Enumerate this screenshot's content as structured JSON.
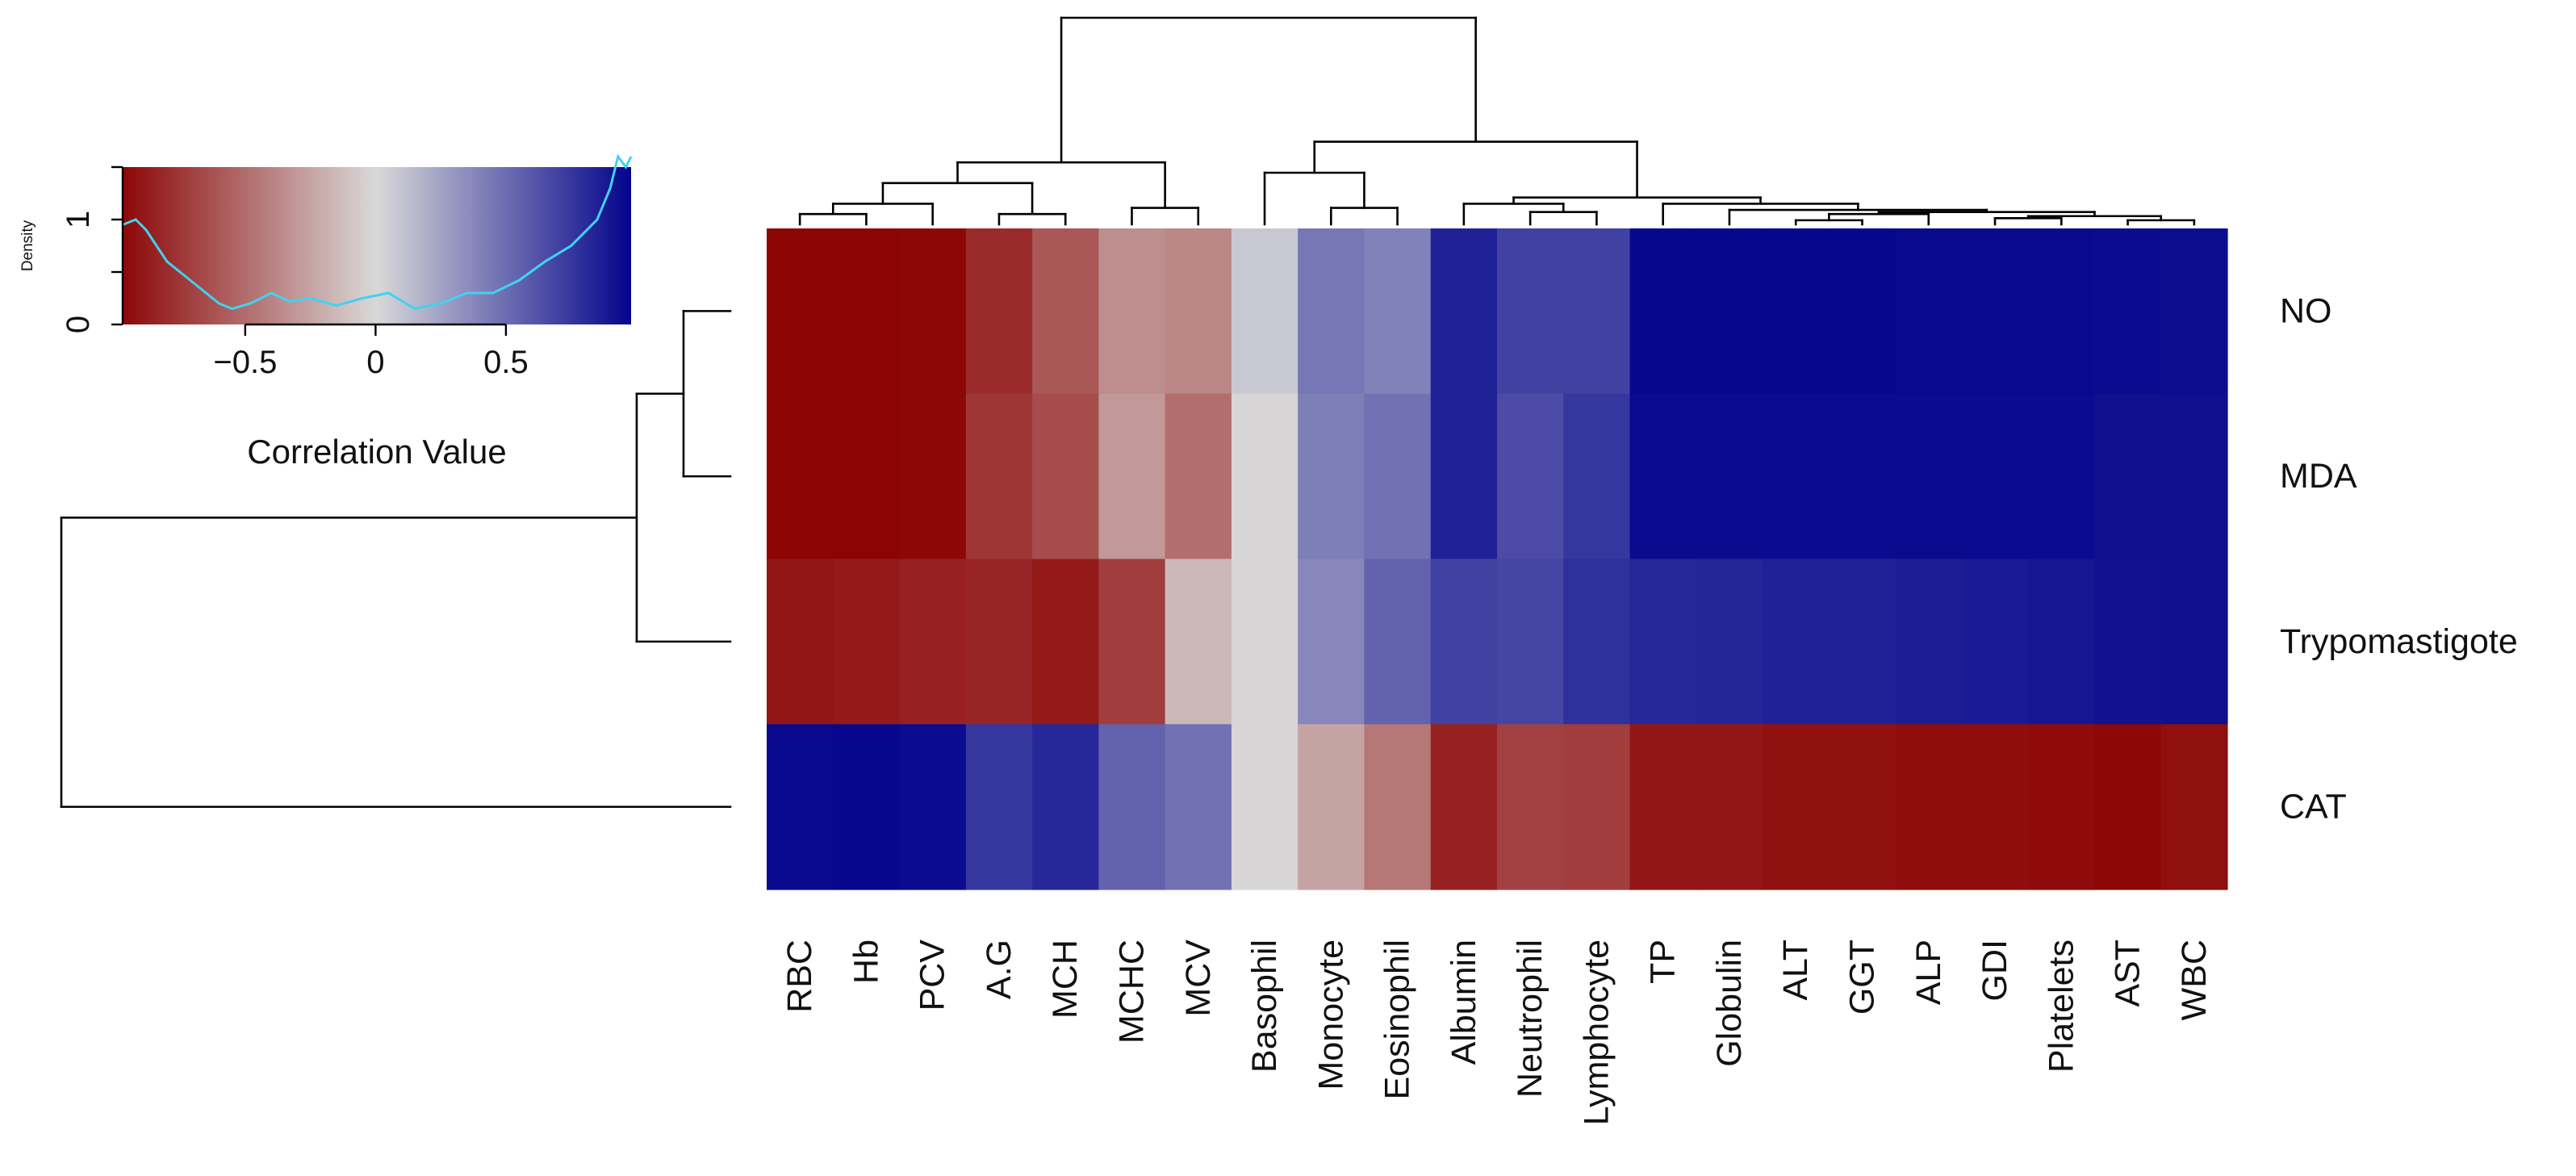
{
  "chart_data": {
    "type": "heatmap",
    "title": "",
    "columns": [
      "RBC",
      "Hb",
      "PCV",
      "A.G",
      "MCH",
      "MCHC",
      "MCV",
      "Basophil",
      "Monocyte",
      "Eosinophil",
      "Albumin",
      "Neutrophil",
      "Lymphocyte",
      "TP",
      "Globulin",
      "ALT",
      "GGT",
      "ALP",
      "GDI",
      "Platelets",
      "AST",
      "WBC"
    ],
    "rows": [
      "NO",
      "MDA",
      "Trypomastigote",
      "CAT"
    ],
    "values": [
      [
        -0.98,
        -0.98,
        -0.97,
        -0.8,
        -0.6,
        -0.35,
        -0.38,
        0.08,
        0.45,
        0.4,
        0.85,
        0.7,
        0.7,
        0.97,
        0.97,
        0.97,
        0.97,
        0.96,
        0.96,
        0.96,
        0.95,
        0.94
      ],
      [
        -0.98,
        -0.98,
        -0.97,
        -0.75,
        -0.65,
        -0.3,
        -0.5,
        -0.02,
        0.42,
        0.48,
        0.85,
        0.65,
        0.75,
        0.95,
        0.95,
        0.95,
        0.95,
        0.95,
        0.95,
        0.95,
        0.93,
        0.93
      ],
      [
        -0.9,
        -0.88,
        -0.85,
        -0.83,
        -0.88,
        -0.72,
        -0.15,
        -0.02,
        0.38,
        0.55,
        0.7,
        0.68,
        0.78,
        0.82,
        0.83,
        0.85,
        0.85,
        0.87,
        0.88,
        0.9,
        0.92,
        0.93
      ],
      [
        0.96,
        0.97,
        0.95,
        0.75,
        0.82,
        0.55,
        0.48,
        -0.02,
        -0.25,
        -0.45,
        -0.85,
        -0.7,
        -0.72,
        -0.9,
        -0.9,
        -0.92,
        -0.92,
        -0.94,
        -0.94,
        -0.95,
        -0.97,
        -0.93
      ]
    ],
    "value_range": [
      -1,
      1
    ],
    "color_scale": [
      "#8b0000",
      "#d9d9d9",
      "#00008b"
    ],
    "column_dendrogram": [
      [
        0,
        1
      ],
      [
        22,
        2
      ],
      [
        3,
        4
      ],
      [
        5,
        6
      ],
      [
        23,
        24
      ],
      [
        26,
        25
      ],
      [
        8,
        9
      ],
      [
        7,
        28
      ],
      [
        11,
        12
      ],
      [
        10,
        30
      ],
      [
        16,
        15
      ],
      [
        17,
        32
      ],
      [
        18,
        19
      ],
      [
        20,
        21
      ],
      [
        34,
        35
      ],
      [
        33,
        36
      ],
      [
        14,
        37
      ],
      [
        13,
        38
      ],
      [
        31,
        39
      ],
      [
        29,
        40
      ],
      [
        27,
        41
      ]
    ],
    "column_dendrogram_heights": [
      0.05,
      0.1,
      0.05,
      0.08,
      0.2,
      0.3,
      0.08,
      0.25,
      0.06,
      0.1,
      0.02,
      0.05,
      0.03,
      0.02,
      0.04,
      0.06,
      0.07,
      0.1,
      0.13,
      0.4,
      1.0
    ],
    "row_dendrogram": [
      [
        0,
        1
      ],
      [
        4,
        2
      ],
      [
        5,
        3
      ]
    ],
    "row_dendrogram_heights": [
      0.07,
      0.14,
      1.0
    ],
    "color_key": {
      "title": "Correlation Value",
      "ylabel": "Density",
      "xticks": [
        -0.5,
        0,
        0.5
      ],
      "xtick_labels": [
        "−0.5",
        "0",
        "0.5"
      ],
      "xlim": [
        -0.97,
        0.98
      ],
      "yticks": [
        0,
        1
      ],
      "ytick_labels": [
        "0",
        "1"
      ],
      "ylim": [
        0,
        1.5
      ],
      "density_color": "#40d3f0",
      "density_x": [
        -0.97,
        -0.92,
        -0.88,
        -0.8,
        -0.7,
        -0.6,
        -0.55,
        -0.48,
        -0.4,
        -0.33,
        -0.25,
        -0.15,
        -0.05,
        0.05,
        0.15,
        0.25,
        0.35,
        0.45,
        0.55,
        0.65,
        0.75,
        0.85,
        0.9,
        0.93,
        0.96,
        0.98
      ],
      "density_y": [
        0.95,
        1.0,
        0.9,
        0.6,
        0.4,
        0.2,
        0.15,
        0.2,
        0.3,
        0.22,
        0.25,
        0.18,
        0.25,
        0.3,
        0.15,
        0.2,
        0.3,
        0.3,
        0.42,
        0.6,
        0.75,
        1.0,
        1.3,
        1.6,
        1.5,
        1.6
      ]
    }
  }
}
